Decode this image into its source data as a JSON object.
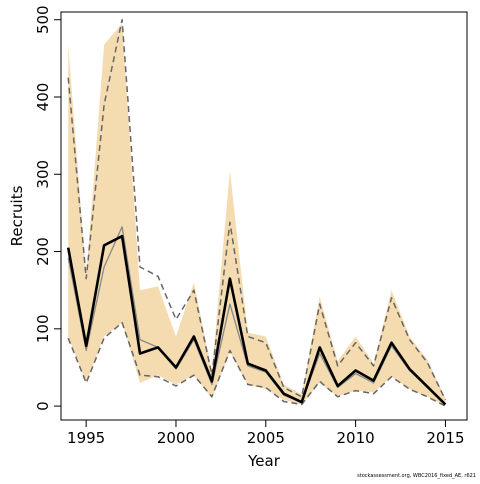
{
  "chart_data": {
    "type": "line",
    "title": "",
    "xlabel": "Year",
    "ylabel": "Recruits",
    "xlim": [
      1993.6,
      2016.2
    ],
    "ylim": [
      -18,
      510
    ],
    "xticks": [
      1995,
      2000,
      2005,
      2010,
      2015
    ],
    "yticks": [
      0,
      100,
      200,
      300,
      400,
      500
    ],
    "grid": false,
    "legend": "none",
    "x": [
      1994,
      1995,
      1996,
      1997,
      1998,
      1999,
      2000,
      2001,
      2002,
      2003,
      2004,
      2005,
      2006,
      2007,
      2008,
      2009,
      2010,
      2011,
      2012,
      2013,
      2014,
      2015
    ],
    "band_upper": [
      468,
      168,
      468,
      495,
      150,
      155,
      90,
      160,
      45,
      305,
      95,
      90,
      28,
      15,
      142,
      58,
      90,
      55,
      150,
      90,
      60,
      10
    ],
    "band_lower": [
      90,
      30,
      90,
      108,
      30,
      40,
      28,
      40,
      10,
      70,
      28,
      22,
      8,
      2,
      30,
      12,
      20,
      18,
      38,
      22,
      12,
      0
    ],
    "series": [
      {
        "values": [
          205,
          78,
          208,
          220,
          68,
          76,
          50,
          90,
          32,
          165,
          55,
          46,
          16,
          5,
          76,
          26,
          46,
          33,
          82,
          48,
          25,
          2
        ],
        "color": "#000000",
        "style": "solid-thick"
      },
      {
        "values": [
          192,
          72,
          180,
          232,
          86,
          76,
          48,
          86,
          28,
          132,
          52,
          44,
          14,
          5,
          68,
          24,
          42,
          30,
          78,
          46,
          24,
          2
        ],
        "color": "#888888",
        "style": "solid-thin"
      },
      {
        "values": [
          425,
          165,
          390,
          500,
          180,
          168,
          112,
          150,
          40,
          238,
          90,
          82,
          24,
          12,
          132,
          52,
          82,
          52,
          140,
          86,
          56,
          8
        ],
        "color": "#666666",
        "style": "dashed"
      },
      {
        "values": [
          88,
          30,
          88,
          108,
          40,
          38,
          26,
          40,
          12,
          72,
          28,
          24,
          6,
          2,
          32,
          12,
          20,
          16,
          38,
          22,
          12,
          0
        ],
        "color": "#666666",
        "style": "dashed"
      }
    ],
    "band_color": "#f5dcb0"
  },
  "credit": "stockassessment.org, WBC2016_fixed_AE, r621"
}
